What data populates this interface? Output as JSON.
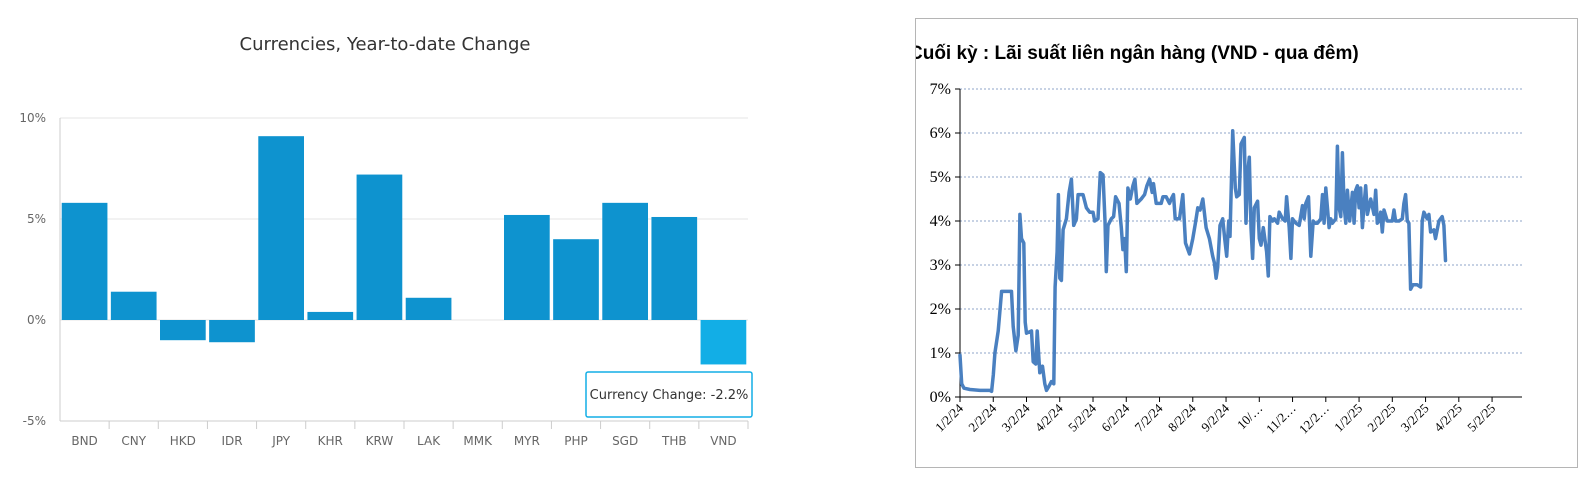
{
  "chart_data": [
    {
      "type": "bar",
      "title": "Currencies, Year-to-date Change",
      "categories": [
        "BND",
        "CNY",
        "HKD",
        "IDR",
        "JPY",
        "KHR",
        "KRW",
        "LAK",
        "MMK",
        "MYR",
        "PHP",
        "SGD",
        "THB",
        "VND"
      ],
      "values": [
        5.8,
        1.4,
        -1.0,
        -1.1,
        9.1,
        0.4,
        7.2,
        1.1,
        0.0,
        5.2,
        4.0,
        5.8,
        5.1,
        -2.2
      ],
      "ylim": [
        -5,
        10
      ],
      "yticks": [
        "10%",
        "5%",
        "0%",
        "-5%"
      ],
      "ytick_values": [
        10,
        5,
        0,
        -5
      ],
      "colors": {
        "bar": "#0e93cf",
        "highlight": "#12aee6",
        "grid": "#e6e6e6",
        "tooltip_border": "#12aee6"
      },
      "highlighted_category": "VND",
      "tooltip": "Currency Change: -2.2%"
    },
    {
      "type": "line",
      "title": "Cuối kỳ : Lãi suất liên ngân hàng (VND - qua đêm)",
      "ylim": [
        0,
        7
      ],
      "yticks": [
        "0%",
        "1%",
        "2%",
        "3%",
        "4%",
        "5%",
        "6%",
        "7%"
      ],
      "ytick_values": [
        0,
        1,
        2,
        3,
        4,
        5,
        6,
        7
      ],
      "xticks": [
        "1/2/24",
        "2/2/24",
        "3/2/24",
        "4/2/24",
        "5/2/24",
        "6/2/24",
        "7/2/24",
        "8/2/24",
        "9/2/24",
        "10/…",
        "11/2…",
        "12/2…",
        "1/2/25",
        "2/2/25",
        "3/2/25",
        "4/2/25",
        "5/2/25"
      ],
      "x_range_months": [
        0,
        16.9
      ],
      "grid": "horizontal-dotted",
      "colors": {
        "line": "#4a80c0",
        "grid": "#8fa6c8"
      },
      "series": [
        {
          "points": [
            [
              0.0,
              0.95
            ],
            [
              0.05,
              0.3
            ],
            [
              0.12,
              0.2
            ],
            [
              0.3,
              0.17
            ],
            [
              0.6,
              0.15
            ],
            [
              0.9,
              0.15
            ],
            [
              0.95,
              0.13
            ],
            [
              1.0,
              0.5
            ],
            [
              1.05,
              1.0
            ],
            [
              1.15,
              1.5
            ],
            [
              1.25,
              2.4
            ],
            [
              1.45,
              2.4
            ],
            [
              1.55,
              2.4
            ],
            [
              1.6,
              1.6
            ],
            [
              1.68,
              1.05
            ],
            [
              1.75,
              1.4
            ],
            [
              1.8,
              4.15
            ],
            [
              1.85,
              3.6
            ],
            [
              1.92,
              3.5
            ],
            [
              1.96,
              1.7
            ],
            [
              2.0,
              1.45
            ],
            [
              2.15,
              1.5
            ],
            [
              2.2,
              0.8
            ],
            [
              2.28,
              0.75
            ],
            [
              2.32,
              1.5
            ],
            [
              2.4,
              0.55
            ],
            [
              2.48,
              0.7
            ],
            [
              2.55,
              0.3
            ],
            [
              2.6,
              0.15
            ],
            [
              2.68,
              0.25
            ],
            [
              2.75,
              0.35
            ],
            [
              2.82,
              0.3
            ],
            [
              2.86,
              2.5
            ],
            [
              2.92,
              3.3
            ],
            [
              2.96,
              4.6
            ],
            [
              3.0,
              2.7
            ],
            [
              3.05,
              2.65
            ],
            [
              3.1,
              3.8
            ],
            [
              3.2,
              4.05
            ],
            [
              3.28,
              4.65
            ],
            [
              3.35,
              4.95
            ],
            [
              3.42,
              3.9
            ],
            [
              3.5,
              4.05
            ],
            [
              3.55,
              4.6
            ],
            [
              3.7,
              4.6
            ],
            [
              3.8,
              4.3
            ],
            [
              3.9,
              4.2
            ],
            [
              4.0,
              4.2
            ],
            [
              4.05,
              4.0
            ],
            [
              4.15,
              4.05
            ],
            [
              4.22,
              5.1
            ],
            [
              4.3,
              5.05
            ],
            [
              4.36,
              4.0
            ],
            [
              4.4,
              2.85
            ],
            [
              4.45,
              3.9
            ],
            [
              4.55,
              4.05
            ],
            [
              4.62,
              4.1
            ],
            [
              4.68,
              4.55
            ],
            [
              4.78,
              4.4
            ],
            [
              4.85,
              3.85
            ],
            [
              4.9,
              3.35
            ],
            [
              4.95,
              3.6
            ],
            [
              5.0,
              2.85
            ],
            [
              5.05,
              4.75
            ],
            [
              5.12,
              4.5
            ],
            [
              5.2,
              4.8
            ],
            [
              5.26,
              4.95
            ],
            [
              5.32,
              4.4
            ],
            [
              5.45,
              4.5
            ],
            [
              5.55,
              4.6
            ],
            [
              5.62,
              4.8
            ],
            [
              5.7,
              4.95
            ],
            [
              5.78,
              4.65
            ],
            [
              5.82,
              4.85
            ],
            [
              5.9,
              4.4
            ],
            [
              6.05,
              4.4
            ],
            [
              6.1,
              4.55
            ],
            [
              6.2,
              4.55
            ],
            [
              6.3,
              4.4
            ],
            [
              6.35,
              4.5
            ],
            [
              6.42,
              4.6
            ],
            [
              6.47,
              4.05
            ],
            [
              6.6,
              4.05
            ],
            [
              6.7,
              4.6
            ],
            [
              6.78,
              3.5
            ],
            [
              6.9,
              3.25
            ],
            [
              7.0,
              3.6
            ],
            [
              7.08,
              3.95
            ],
            [
              7.15,
              4.3
            ],
            [
              7.22,
              4.25
            ],
            [
              7.3,
              4.5
            ],
            [
              7.4,
              3.85
            ],
            [
              7.5,
              3.6
            ],
            [
              7.6,
              3.2
            ],
            [
              7.65,
              3.05
            ],
            [
              7.7,
              2.7
            ],
            [
              7.75,
              2.95
            ],
            [
              7.82,
              3.9
            ],
            [
              7.9,
              4.05
            ],
            [
              7.96,
              3.6
            ],
            [
              8.02,
              3.2
            ],
            [
              8.08,
              4.0
            ],
            [
              8.12,
              3.65
            ],
            [
              8.2,
              6.05
            ],
            [
              8.28,
              4.75
            ],
            [
              8.32,
              4.55
            ],
            [
              8.4,
              4.6
            ],
            [
              8.45,
              5.75
            ],
            [
              8.55,
              5.9
            ],
            [
              8.6,
              3.95
            ],
            [
              8.65,
              5.1
            ],
            [
              8.7,
              5.45
            ],
            [
              8.75,
              3.85
            ],
            [
              8.8,
              3.15
            ],
            [
              8.85,
              4.3
            ],
            [
              8.95,
              4.45
            ],
            [
              9.0,
              3.6
            ],
            [
              9.05,
              3.45
            ],
            [
              9.12,
              3.85
            ],
            [
              9.22,
              3.3
            ],
            [
              9.27,
              2.75
            ],
            [
              9.32,
              4.1
            ],
            [
              9.4,
              4.0
            ],
            [
              9.45,
              4.05
            ],
            [
              9.55,
              3.95
            ],
            [
              9.6,
              4.2
            ],
            [
              9.7,
              4.05
            ],
            [
              9.78,
              4.0
            ],
            [
              9.82,
              4.55
            ],
            [
              9.9,
              3.85
            ],
            [
              9.95,
              3.15
            ],
            [
              10.0,
              4.05
            ],
            [
              10.1,
              3.95
            ],
            [
              10.2,
              3.9
            ],
            [
              10.3,
              4.35
            ],
            [
              10.35,
              4.05
            ],
            [
              10.4,
              4.4
            ],
            [
              10.48,
              4.55
            ],
            [
              10.55,
              3.2
            ],
            [
              10.62,
              4.0
            ],
            [
              10.68,
              3.95
            ],
            [
              10.75,
              3.95
            ],
            [
              10.85,
              4.05
            ],
            [
              10.9,
              4.6
            ],
            [
              10.95,
              3.95
            ],
            [
              11.0,
              4.75
            ],
            [
              11.1,
              3.85
            ],
            [
              11.15,
              4.05
            ],
            [
              11.2,
              3.95
            ],
            [
              11.3,
              4.05
            ],
            [
              11.35,
              5.7
            ],
            [
              11.4,
              4.3
            ],
            [
              11.45,
              4.1
            ],
            [
              11.5,
              5.55
            ],
            [
              11.55,
              4.35
            ],
            [
              11.6,
              3.95
            ],
            [
              11.65,
              4.7
            ],
            [
              11.72,
              4.0
            ],
            [
              11.8,
              4.65
            ],
            [
              11.85,
              3.95
            ],
            [
              11.9,
              4.7
            ],
            [
              11.95,
              4.8
            ],
            [
              12.0,
              4.3
            ],
            [
              12.05,
              4.75
            ],
            [
              12.1,
              3.85
            ],
            [
              12.15,
              4.35
            ],
            [
              12.2,
              4.8
            ],
            [
              12.25,
              4.15
            ],
            [
              12.35,
              4.5
            ],
            [
              12.45,
              4.15
            ],
            [
              12.5,
              4.7
            ],
            [
              12.55,
              3.95
            ],
            [
              12.6,
              4.0
            ],
            [
              12.65,
              4.2
            ],
            [
              12.7,
              3.75
            ],
            [
              12.75,
              4.25
            ],
            [
              12.85,
              4.0
            ],
            [
              13.0,
              4.0
            ],
            [
              13.05,
              4.25
            ],
            [
              13.1,
              4.0
            ],
            [
              13.2,
              4.0
            ],
            [
              13.3,
              4.05
            ],
            [
              13.35,
              4.4
            ],
            [
              13.4,
              4.6
            ],
            [
              13.45,
              4.0
            ],
            [
              13.5,
              3.95
            ],
            [
              13.55,
              2.45
            ],
            [
              13.62,
              2.55
            ],
            [
              13.75,
              2.55
            ],
            [
              13.85,
              2.5
            ],
            [
              13.9,
              4.0
            ],
            [
              13.95,
              4.2
            ],
            [
              14.05,
              4.05
            ],
            [
              14.1,
              4.15
            ],
            [
              14.15,
              3.75
            ],
            [
              14.25,
              3.8
            ],
            [
              14.3,
              3.6
            ],
            [
              14.4,
              4.0
            ],
            [
              14.5,
              4.1
            ],
            [
              14.55,
              3.9
            ],
            [
              14.6,
              3.1
            ]
          ]
        }
      ]
    }
  ]
}
